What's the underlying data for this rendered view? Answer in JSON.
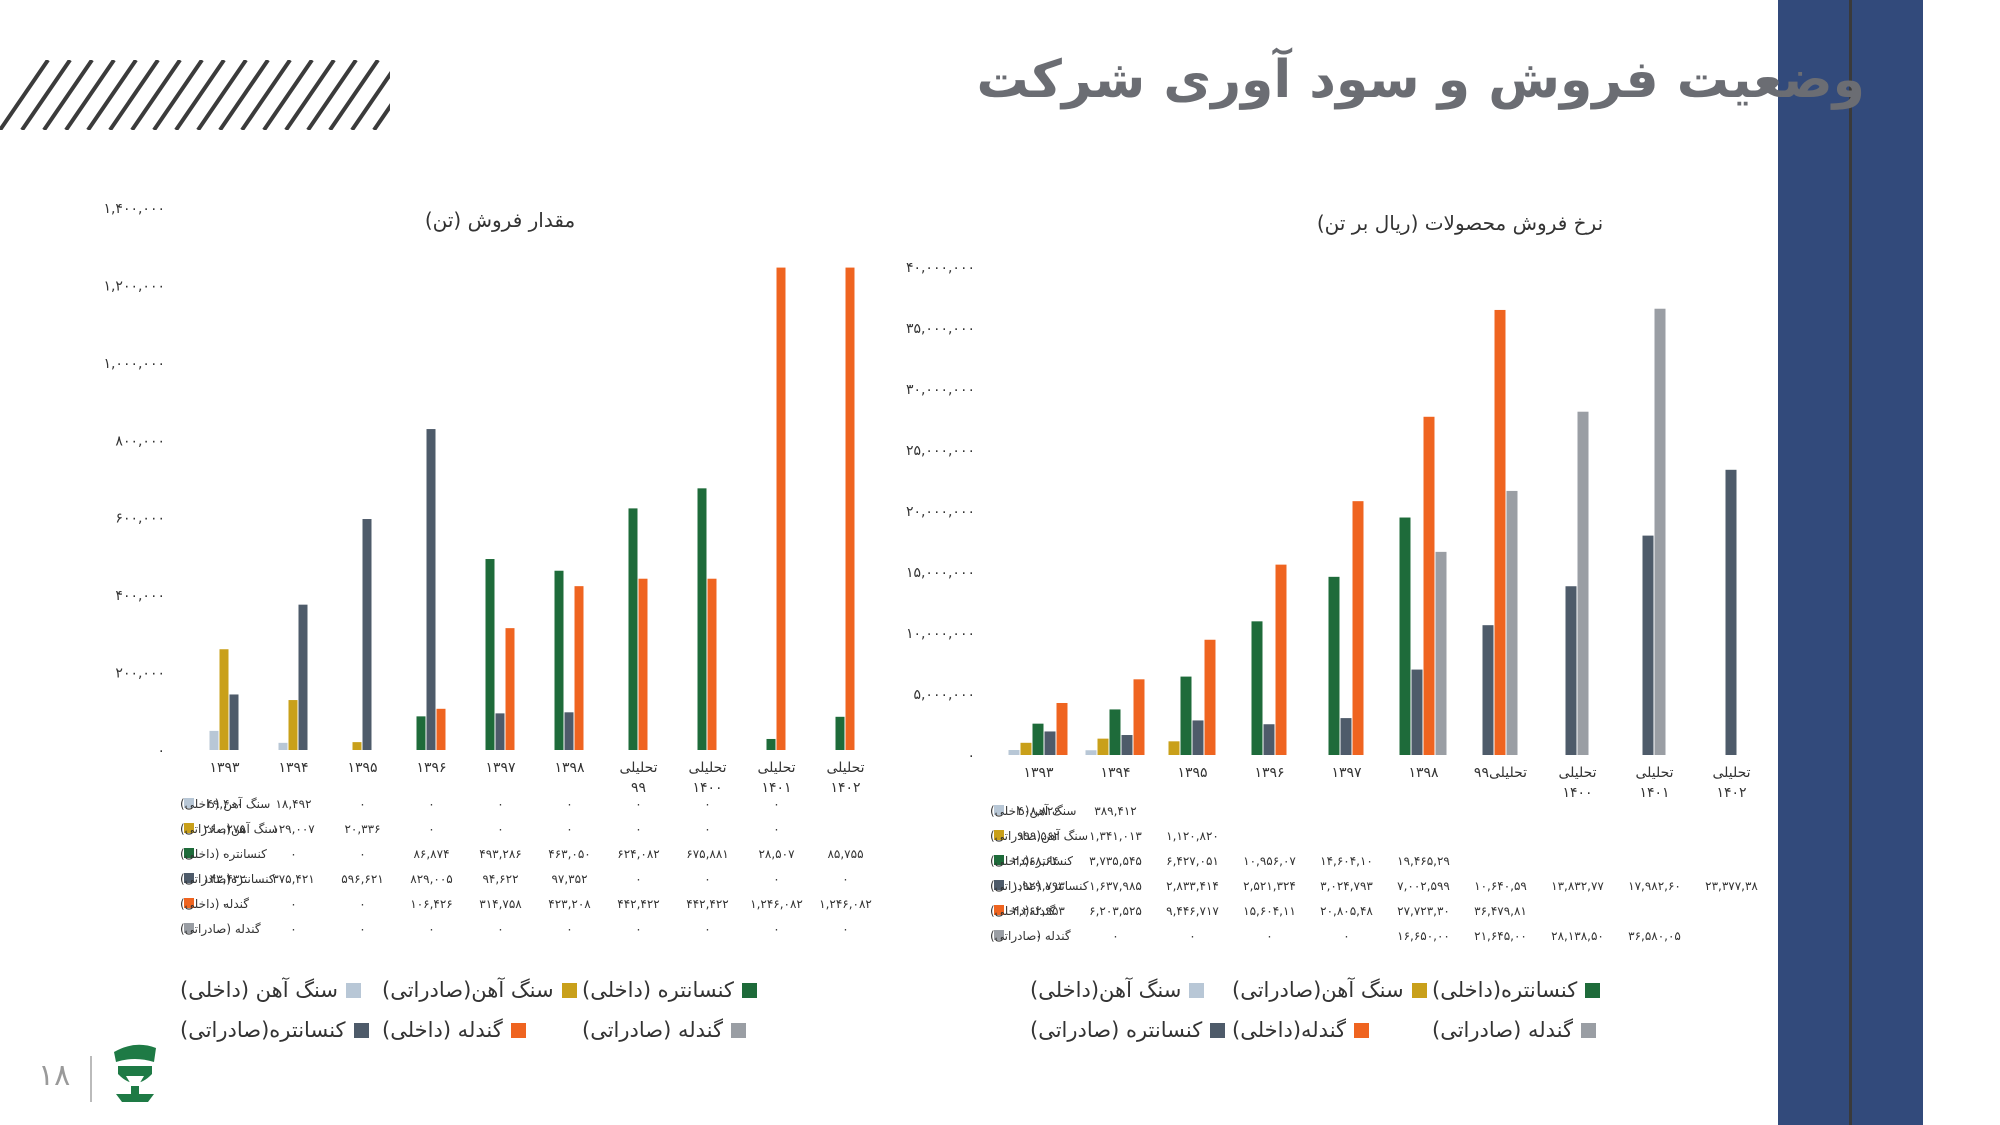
{
  "page": {
    "title": "وضعیت فروش  و سود آوری شرکت",
    "page_number": "۱۸"
  },
  "colors": {
    "iron_dom": "#b8c7d6",
    "iron_exp": "#c9a01a",
    "conc_dom": "#1e6b3a",
    "conc_exp": "#4e5b6a",
    "pellet_dom": "#ef6420",
    "pellet_exp": "#9a9ea4",
    "sidebar": "#324a7b"
  },
  "chart_data": [
    {
      "type": "bar",
      "title": "مقدار فروش (تن)",
      "categories": [
        "۱۳۹۳",
        "۱۳۹۴",
        "۱۳۹۵",
        "۱۳۹۶",
        "۱۳۹۷",
        "۱۳۹۸",
        "تحلیلی ۹۹",
        "تحلیلی ۱۴۰۰",
        "تحلیلی ۱۴۰۱",
        "تحلیلی ۱۴۰۲"
      ],
      "ylim": [
        0,
        1400000
      ],
      "yticks": [
        "۰",
        "۲۰۰,۰۰۰",
        "۴۰۰,۰۰۰",
        "۶۰۰,۰۰۰",
        "۸۰۰,۰۰۰",
        "۱,۰۰۰,۰۰۰",
        "۱,۲۰۰,۰۰۰",
        "۱,۴۰۰,۰۰۰"
      ],
      "series": [
        {
          "name": "سنگ آهن (داخلی)",
          "table_label": "سنگ آهن (داخلی)",
          "values": [
            49400,
            18492,
            0,
            0,
            0,
            0,
            0,
            0,
            0,
            null
          ],
          "labels": [
            "۴۹,۴۰۰",
            "۱۸,۴۹۲",
            "۰",
            "۰",
            "۰",
            "۰",
            "۰",
            "۰",
            "۰",
            ""
          ]
        },
        {
          "name": "سنگ آهن(صادراتی)",
          "table_label": "سنگ آهن(صادراتی)",
          "values": [
            260275,
            129007,
            20336,
            0,
            0,
            0,
            0,
            0,
            0,
            null
          ],
          "labels": [
            "۲۶۰,۲۷۵",
            "۱۲۹,۰۰۷",
            "۲۰,۳۳۶",
            "۰",
            "۰",
            "۰",
            "۰",
            "۰",
            "۰",
            ""
          ]
        },
        {
          "name": "کنسانتره (داخلی)",
          "table_label": "کنسانتره (داخلی)",
          "values": [
            0,
            0,
            0,
            86874,
            493286,
            463050,
            624082,
            675881,
            28507,
            85755
          ],
          "labels": [
            "۰",
            "۰",
            "۰",
            "۸۶,۸۷۴",
            "۴۹۳,۲۸۶",
            "۴۶۳,۰۵۰",
            "۶۲۴,۰۸۲",
            "۶۷۵,۸۸۱",
            "۲۸,۵۰۷",
            "۸۵,۷۵۵"
          ]
        },
        {
          "name": "کنسانتره(صادراتی)",
          "table_label": "کنسانتره(صادراتی)",
          "values": [
            143432,
            375421,
            596621,
            829005,
            94622,
            97352,
            0,
            0,
            0,
            0
          ],
          "labels": [
            "۱۴۳,۴۳۲",
            "۳۷۵,۴۲۱",
            "۵۹۶,۶۲۱",
            "۸۲۹,۰۰۵",
            "۹۴,۶۲۲",
            "۹۷,۳۵۲",
            "۰",
            "۰",
            "۰",
            "۰"
          ]
        },
        {
          "name": "گندله (داخلی)",
          "table_label": "گندله (داخلی)",
          "values": [
            0,
            0,
            0,
            106426,
            314758,
            423208,
            442422,
            442422,
            1246082,
            1246082
          ],
          "labels": [
            "۰",
            "۰",
            "۰",
            "۱۰۶,۴۲۶",
            "۳۱۴,۷۵۸",
            "۴۲۳,۲۰۸",
            "۴۴۲,۴۲۲",
            "۴۴۲,۴۲۲",
            "۱,۲۴۶,۰۸۲",
            "۱,۲۴۶,۰۸۲"
          ]
        },
        {
          "name": "گندله (صادراتی)",
          "table_label": "گندله (صادراتی)",
          "values": [
            0,
            0,
            0,
            0,
            0,
            0,
            0,
            0,
            0,
            0
          ],
          "labels": [
            "۰",
            "۰",
            "۰",
            "۰",
            "۰",
            "۰",
            "۰",
            "۰",
            "۰",
            "۰"
          ]
        }
      ]
    },
    {
      "type": "bar",
      "title": "نرخ فروش محصولات (ریال بر تن)",
      "categories": [
        "۱۳۹۳",
        "۱۳۹۴",
        "۱۳۹۵",
        "۱۳۹۶",
        "۱۳۹۷",
        "۱۳۹۸",
        "تحلیلی۹۹",
        "تحلیلی ۱۴۰۰",
        "تحلیلی ۱۴۰۱",
        "تحلیلی ۱۴۰۲"
      ],
      "ylim": [
        0,
        40000000
      ],
      "yticks": [
        "۰",
        "۵,۰۰۰,۰۰۰",
        "۱۰,۰۰۰,۰۰۰",
        "۱۵,۰۰۰,۰۰۰",
        "۲۰,۰۰۰,۰۰۰",
        "۲۵,۰۰۰,۰۰۰",
        "۳۰,۰۰۰,۰۰۰",
        "۳۵,۰۰۰,۰۰۰",
        "۴۰,۰۰۰,۰۰۰"
      ],
      "series": [
        {
          "name": "سنگ آهن(داخلی)",
          "table_label": "سنگ آهن(داخلی)",
          "values": [
            408826,
            389412,
            null,
            null,
            null,
            null,
            null,
            null,
            null,
            null
          ],
          "labels": [
            "۴۰۸,۸۲۶",
            "۳۸۹,۴۱۲",
            "",
            "",
            "",
            "",
            "",
            "",
            "",
            ""
          ]
        },
        {
          "name": "سنگ آهن(صادراتی)",
          "table_label": "سنگ آهن(صادراتی)",
          "values": [
            999562,
            1341013,
            1120820,
            null,
            null,
            null,
            null,
            null,
            null,
            null
          ],
          "labels": [
            "۹۹۹,۵۶۲",
            "۱,۳۴۱,۰۱۳",
            "۱,۱۲۰,۸۲۰",
            "",
            "",
            "",
            "",
            "",
            "",
            ""
          ]
        },
        {
          "name": "کنسانتره(داخلی)",
          "table_label": "کنسانتره(داخلی)",
          "values": [
            2568640,
            3735545,
            6427051,
            10956070,
            14604100,
            19465290,
            null,
            null,
            null,
            null
          ],
          "labels": [
            "۲,۵۶۸,۶۴۰",
            "۳,۷۳۵,۵۴۵",
            "۶,۴۲۷,۰۵۱",
            "۱۰,۹۵۶,۰۷",
            "۱۴,۶۰۴,۱۰",
            "۱۹,۴۶۵,۲۹",
            "",
            "",
            "",
            ""
          ]
        },
        {
          "name": "کنسانتره (صادراتی)",
          "table_label": "کنسانتره (صادراتی)",
          "values": [
            1929793,
            1637985,
            2833414,
            2521324,
            3024793,
            7002599,
            10640590,
            13832770,
            17982600,
            23377380
          ],
          "labels": [
            "۱,۹۲۹,۷۹۳",
            "۱,۶۳۷,۹۸۵",
            "۲,۸۳۳,۴۱۴",
            "۲,۵۲۱,۳۲۴",
            "۳,۰۲۴,۷۹۳",
            "۷,۰۰۲,۵۹۹",
            "۱۰,۶۴۰,۵۹",
            "۱۳,۸۳۲,۷۷",
            "۱۷,۹۸۲,۶۰",
            "۲۳,۳۷۷,۳۸"
          ]
        },
        {
          "name": "گندله(داخلی)",
          "table_label": "گندله(داخلی)",
          "values": [
            4262953,
            6203525,
            9446717,
            15604110,
            20805480,
            27723300,
            36479810,
            null,
            null,
            null
          ],
          "labels": [
            "۴,۲۶۲,۹۵۳",
            "۶,۲۰۳,۵۲۵",
            "۹,۴۴۶,۷۱۷",
            "۱۵,۶۰۴,۱۱",
            "۲۰,۸۰۵,۴۸",
            "۲۷,۷۲۳,۳۰",
            "۳۶,۴۷۹,۸۱",
            "",
            "",
            ""
          ]
        },
        {
          "name": "گندله (صادراتی)",
          "table_label": "گندله (صادراتی)",
          "values": [
            0,
            0,
            0,
            0,
            0,
            16650000,
            21645000,
            28138500,
            36580050,
            null
          ],
          "labels": [
            "۰",
            "۰",
            "۰",
            "۰",
            "۰",
            "۱۶,۶۵۰,۰۰",
            "۲۱,۶۴۵,۰۰",
            "۲۸,۱۳۸,۵۰",
            "۳۶,۵۸۰,۰۵",
            ""
          ]
        }
      ]
    }
  ]
}
